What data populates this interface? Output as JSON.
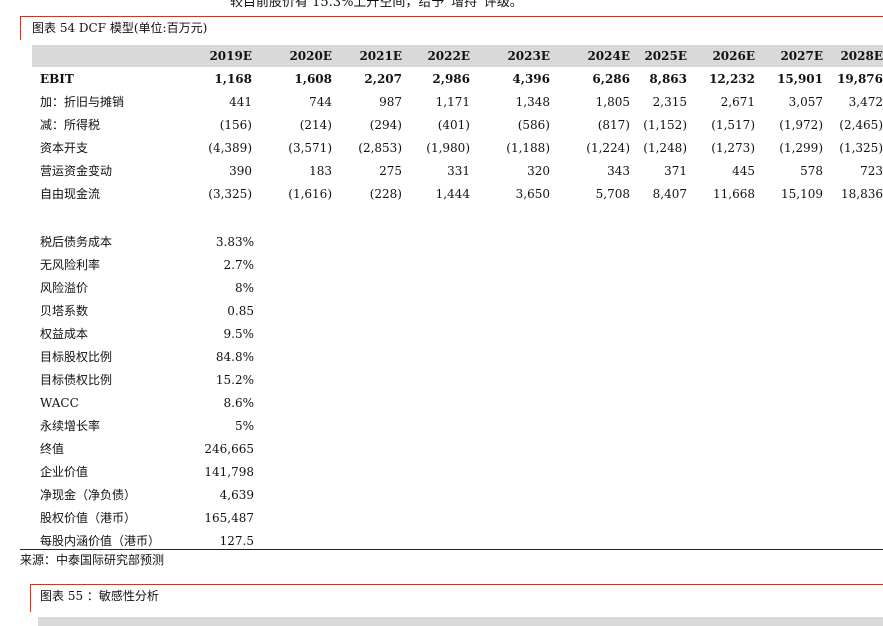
{
  "top_text": "较目前股价有 15.3%上升空间，给予“增持”评级。",
  "figure54": {
    "caption": "图表 54 DCF 模型(单位:百万元)",
    "columns": [
      "2019E",
      "2020E",
      "2021E",
      "2022E",
      "2023E",
      "2024E",
      "2025E",
      "2026E",
      "2027E",
      "2028E"
    ],
    "rows": [
      {
        "label": "EBIT",
        "values": [
          "1,168",
          "1,608",
          "2,207",
          "2,986",
          "4,396",
          "6,286",
          "8,863",
          "12,232",
          "15,901",
          "19,876"
        ],
        "bold": true
      },
      {
        "label": "加：折旧与摊销",
        "values": [
          "441",
          "744",
          "987",
          "1,171",
          "1,348",
          "1,805",
          "2,315",
          "2,671",
          "3,057",
          "3,472"
        ],
        "bold": false
      },
      {
        "label": "减：所得税",
        "values": [
          "(156)",
          "(214)",
          "(294)",
          "(401)",
          "(586)",
          "(817)",
          "(1,152)",
          "(1,517)",
          "(1,972)",
          "(2,465)"
        ],
        "bold": false
      },
      {
        "label": "资本开支",
        "values": [
          "(4,389)",
          "(3,571)",
          "(2,853)",
          "(1,980)",
          "(1,188)",
          "(1,224)",
          "(1,248)",
          "(1,273)",
          "(1,299)",
          "(1,325)"
        ],
        "bold": false
      },
      {
        "label": "营运资金变动",
        "values": [
          "390",
          "183",
          "275",
          "331",
          "320",
          "343",
          "371",
          "445",
          "578",
          "723"
        ],
        "bold": false
      },
      {
        "label": "自由现金流",
        "values": [
          "(3,325)",
          "(1,616)",
          "(228)",
          "1,444",
          "3,650",
          "5,708",
          "8,407",
          "11,668",
          "15,109",
          "18,836"
        ],
        "bold": false
      }
    ],
    "params": [
      {
        "label": "税后债务成本",
        "value": "3.83%"
      },
      {
        "label": "无风险利率",
        "value": "2.7%"
      },
      {
        "label": "风险溢价",
        "value": "8%"
      },
      {
        "label": "贝塔系数",
        "value": "0.85"
      },
      {
        "label": "权益成本",
        "value": "9.5%"
      },
      {
        "label": "目标股权比例",
        "value": "84.8%"
      },
      {
        "label": "目标债权比例",
        "value": "15.2%"
      },
      {
        "label": "WACC",
        "value": "8.6%"
      },
      {
        "label": "永续增长率",
        "value": "5%"
      },
      {
        "label": "终值",
        "value": "246,665"
      },
      {
        "label": "企业价值",
        "value": "141,798"
      },
      {
        "label": "净现金（净负债）",
        "value": "4,639"
      },
      {
        "label": "股权价值（港币）",
        "value": "165,487"
      },
      {
        "label": "每股内涵价值（港币）",
        "value": "127.5"
      }
    ],
    "source": "来源：中泰国际研究部预测"
  },
  "figure55": {
    "caption": "图表 55 ：敏感性分析"
  },
  "colors": {
    "accent_red": "#c0392b",
    "header_grey": "#d9d9d9"
  }
}
